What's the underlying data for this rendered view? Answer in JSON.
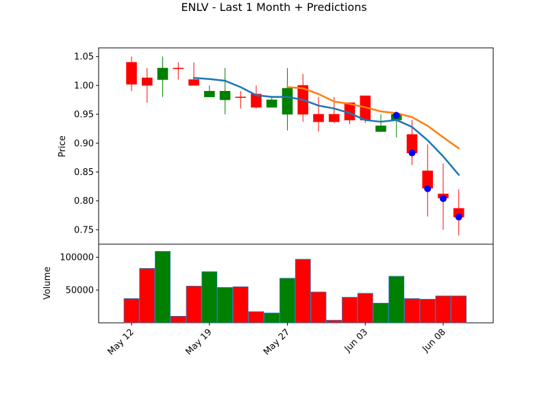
{
  "chart_data": {
    "title": "ENLV - Last 1 Month + Predictions",
    "type": "candlestick",
    "price_panel": {
      "ylabel": "Price",
      "ylim": [
        0.725,
        1.065
      ],
      "yticks": [
        0.75,
        0.8,
        0.85,
        0.9,
        0.95,
        1.0,
        1.05
      ],
      "ytick_labels": [
        "0.75",
        "0.80",
        "0.85",
        "0.90",
        "0.95",
        "1.00",
        "1.05"
      ],
      "candles": [
        {
          "date": "May 12",
          "open": 1.002,
          "high": 1.05,
          "low": 0.99,
          "close": 1.04,
          "color": "red"
        },
        {
          "date": "May 13",
          "open": 1.013,
          "high": 1.03,
          "low": 0.97,
          "close": 1.0,
          "color": "red"
        },
        {
          "date": "May 14",
          "open": 1.01,
          "high": 1.05,
          "low": 0.98,
          "close": 1.03,
          "color": "green"
        },
        {
          "date": "May 15",
          "open": 1.03,
          "high": 1.04,
          "low": 1.01,
          "close": 1.03,
          "color": "red"
        },
        {
          "date": "May 16",
          "open": 1.01,
          "high": 1.04,
          "low": 1.0,
          "close": 1.0,
          "color": "red"
        },
        {
          "date": "May 19",
          "open": 0.98,
          "high": 1.0,
          "low": 0.98,
          "close": 0.99,
          "color": "green"
        },
        {
          "date": "May 20",
          "open": 0.975,
          "high": 1.03,
          "low": 0.95,
          "close": 0.99,
          "color": "green"
        },
        {
          "date": "May 21",
          "open": 0.98,
          "high": 0.99,
          "low": 0.96,
          "close": 0.98,
          "color": "red"
        },
        {
          "date": "May 22",
          "open": 0.985,
          "high": 1.0,
          "low": 0.96,
          "close": 0.962,
          "color": "red"
        },
        {
          "date": "May 23",
          "open": 0.962,
          "high": 0.98,
          "low": 0.962,
          "close": 0.975,
          "color": "green"
        },
        {
          "date": "May 27",
          "open": 0.95,
          "high": 1.03,
          "low": 0.922,
          "close": 0.995,
          "color": "green"
        },
        {
          "date": "May 28",
          "open": 1.0,
          "high": 1.02,
          "low": 0.937,
          "close": 0.95,
          "color": "red"
        },
        {
          "date": "May 29",
          "open": 0.95,
          "high": 0.98,
          "low": 0.92,
          "close": 0.937,
          "color": "red"
        },
        {
          "date": "May 30",
          "open": 0.95,
          "high": 0.98,
          "low": 0.935,
          "close": 0.937,
          "color": "red"
        },
        {
          "date": "Jun 02",
          "open": 0.97,
          "high": 0.97,
          "low": 0.933,
          "close": 0.94,
          "color": "red"
        },
        {
          "date": "Jun 03",
          "open": 0.982,
          "high": 0.982,
          "low": 0.935,
          "close": 0.94,
          "color": "red"
        },
        {
          "date": "Jun 04",
          "open": 0.92,
          "high": 0.95,
          "low": 0.92,
          "close": 0.93,
          "color": "green"
        },
        {
          "date": "Jun 05",
          "open": 0.94,
          "high": 0.955,
          "low": 0.91,
          "close": 0.95,
          "color": "green"
        },
        {
          "date": "Jun 06",
          "open": 0.915,
          "high": 0.94,
          "low": 0.862,
          "close": 0.883,
          "color": "red"
        },
        {
          "date": "Jun 07",
          "open": 0.852,
          "high": 0.898,
          "low": 0.773,
          "close": 0.822,
          "color": "red"
        },
        {
          "date": "Jun 08",
          "open": 0.812,
          "high": 0.865,
          "low": 0.75,
          "close": 0.805,
          "color": "red"
        },
        {
          "date": "Jun 09",
          "open": 0.787,
          "high": 0.82,
          "low": 0.74,
          "close": 0.772,
          "color": "red"
        }
      ],
      "series": [
        {
          "color": "#1f77b4",
          "start_index": 4,
          "values": [
            1.013,
            1.011,
            1.008,
            0.997,
            0.983,
            0.98,
            0.98,
            0.975,
            0.965,
            0.96,
            0.952,
            0.94,
            0.937,
            0.94,
            0.928,
            0.905,
            0.877,
            0.845
          ]
        },
        {
          "color": "#ff7f0e",
          "start_index": 10,
          "values": [
            0.997,
            0.995,
            0.985,
            0.972,
            0.968,
            0.962,
            0.955,
            0.952,
            0.945,
            0.93,
            0.91,
            0.891
          ]
        }
      ],
      "markers": [
        {
          "index": 17,
          "value": 0.948
        },
        {
          "index": 18,
          "value": 0.883
        },
        {
          "index": 19,
          "value": 0.821
        },
        {
          "index": 20,
          "value": 0.804
        },
        {
          "index": 21,
          "value": 0.772
        }
      ]
    },
    "volume_panel": {
      "ylabel": "Volume",
      "ylim": [
        0,
        120000
      ],
      "yticks": [
        50000,
        100000
      ],
      "ytick_labels": [
        "50000",
        "100000"
      ],
      "values": [
        37000,
        83000,
        109000,
        10000,
        56000,
        78000,
        54000,
        55000,
        17000,
        15000,
        68000,
        97000,
        47000,
        4000,
        39000,
        45000,
        30000,
        71000,
        37000,
        36000,
        41000,
        41000
      ]
    },
    "xticks": [
      {
        "index": 0,
        "label": "May 12"
      },
      {
        "index": 5,
        "label": "May 19"
      },
      {
        "index": 10,
        "label": "May 27"
      },
      {
        "index": 15,
        "label": "Jun 03"
      },
      {
        "index": 20,
        "label": "Jun 08"
      }
    ],
    "colors": {
      "up": "#008000",
      "down": "#ff0000",
      "marker": "#0000ff"
    }
  }
}
